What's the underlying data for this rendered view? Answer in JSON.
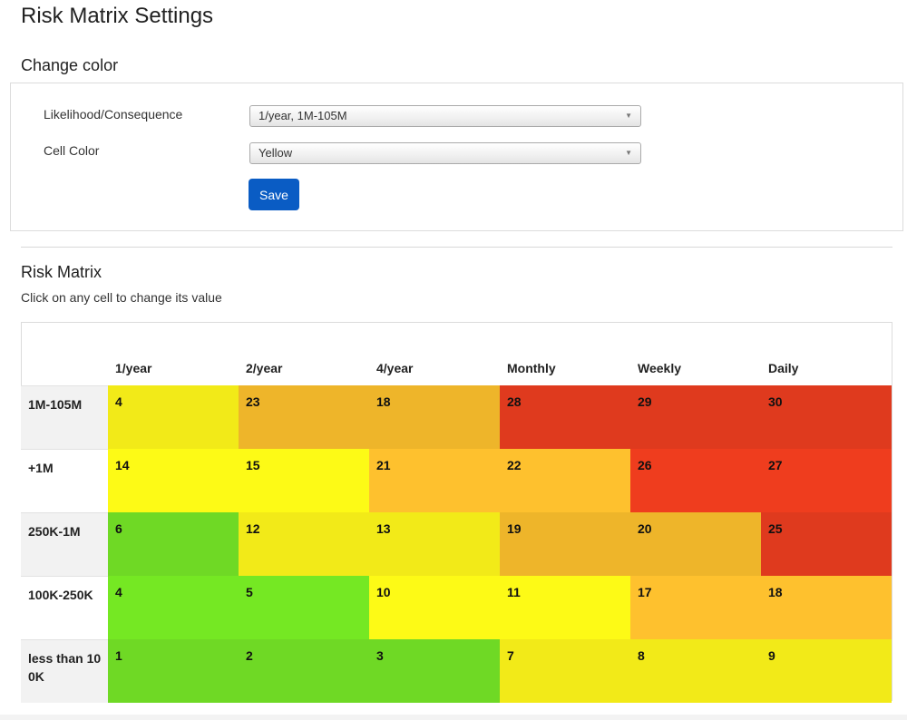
{
  "page": {
    "title": "Risk Matrix Settings"
  },
  "change_color": {
    "heading": "Change color",
    "likelihood_label": "Likelihood/Consequence",
    "likelihood_value": "1/year, 1M-105M",
    "cell_color_label": "Cell Color",
    "cell_color_value": "Yellow",
    "save_label": "Save"
  },
  "risk_matrix": {
    "heading": "Risk Matrix",
    "hint": "Click on any cell to change its value",
    "columns": [
      "1/year",
      "2/year",
      "4/year",
      "Monthly",
      "Weekly",
      "Daily"
    ],
    "rows": [
      {
        "label": "1M-105M",
        "header_bg": "#f2f2f2",
        "cells": [
          {
            "value": "4",
            "color": "#f2ea18"
          },
          {
            "value": "23",
            "color": "#eeb52a"
          },
          {
            "value": "18",
            "color": "#eeb52a"
          },
          {
            "value": "28",
            "color": "#df3a1e"
          },
          {
            "value": "29",
            "color": "#df3a1e"
          },
          {
            "value": "30",
            "color": "#df3a1e"
          }
        ]
      },
      {
        "label": "+1M",
        "header_bg": "#ffffff",
        "cells": [
          {
            "value": "14",
            "color": "#fdfa16"
          },
          {
            "value": "15",
            "color": "#fdfa16"
          },
          {
            "value": "21",
            "color": "#fec12e"
          },
          {
            "value": "22",
            "color": "#fec12e"
          },
          {
            "value": "26",
            "color": "#ef3d1e"
          },
          {
            "value": "27",
            "color": "#ef3d1e"
          }
        ]
      },
      {
        "label": "250K-1M",
        "header_bg": "#f2f2f2",
        "cells": [
          {
            "value": "6",
            "color": "#6fd925"
          },
          {
            "value": "12",
            "color": "#f2ea18"
          },
          {
            "value": "13",
            "color": "#f2ea18"
          },
          {
            "value": "19",
            "color": "#eeb52a"
          },
          {
            "value": "20",
            "color": "#eeb52a"
          },
          {
            "value": "25",
            "color": "#df3a1e"
          }
        ]
      },
      {
        "label": "100K-250K",
        "header_bg": "#ffffff",
        "cells": [
          {
            "value": "4",
            "color": "#75e823"
          },
          {
            "value": "5",
            "color": "#75e823"
          },
          {
            "value": "10",
            "color": "#fdfa16"
          },
          {
            "value": "11",
            "color": "#fdfa16"
          },
          {
            "value": "17",
            "color": "#fec12e"
          },
          {
            "value": "18",
            "color": "#fec12e"
          }
        ]
      },
      {
        "label": "less than 100K",
        "header_bg": "#f2f2f2",
        "cells": [
          {
            "value": "1",
            "color": "#6fd925"
          },
          {
            "value": "2",
            "color": "#6fd925"
          },
          {
            "value": "3",
            "color": "#6fd925"
          },
          {
            "value": "7",
            "color": "#f2ea18"
          },
          {
            "value": "8",
            "color": "#f2ea18"
          },
          {
            "value": "9",
            "color": "#f2ea18"
          }
        ]
      }
    ]
  },
  "colors": {
    "save_button": "#0a5cc4"
  }
}
